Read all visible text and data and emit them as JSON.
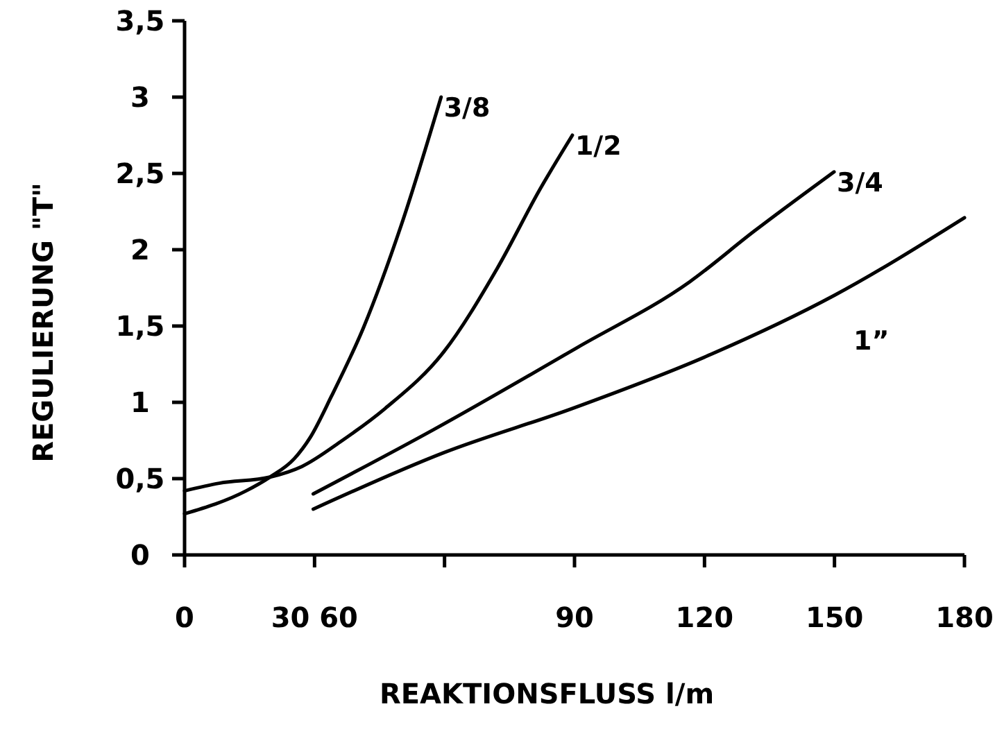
{
  "chart_data": {
    "type": "line",
    "xlabel": "REAKTIONSFLUSS l/m",
    "ylabel": "REGULIERUNG \"T\"",
    "xlim": [
      0,
      180
    ],
    "xticks": [
      0,
      {
        "value": 30,
        "label": "30 60"
      },
      {
        "value": 60,
        "label": null
      },
      90,
      120,
      150,
      180
    ],
    "ylim": [
      0,
      3.5
    ],
    "yticks": [
      0,
      {
        "value": 0.5,
        "label": "0,5"
      },
      1,
      {
        "value": 1.5,
        "label": "1,5"
      },
      2,
      {
        "value": 2.5,
        "label": "2,5"
      },
      3,
      {
        "value": 3.5,
        "label": "3,5"
      }
    ],
    "grid": false,
    "marker": "none",
    "line_style": "solid",
    "series": [
      {
        "name": "3/8",
        "color": "#000000",
        "x": [
          0,
          14.2,
          19.7,
          25.3,
          29,
          33.9,
          41.3,
          50,
          59.2
        ],
        "values": [
          0.27,
          0.42,
          0.51,
          0.63,
          0.77,
          1.04,
          1.49,
          2.16,
          3.0
        ]
      },
      {
        "name": "1/2",
        "color": "#000000",
        "x": [
          0,
          8,
          19.7,
          27.1,
          36.4,
          46.3,
          59.8,
          72.2,
          82.1,
          89.5
        ],
        "values": [
          0.42,
          0.47,
          0.51,
          0.58,
          0.75,
          0.96,
          1.33,
          1.88,
          2.4,
          2.75
        ]
      },
      {
        "name": "3/4",
        "color": "#000000",
        "x": [
          29.7,
          57.4,
          90.7,
          116.6,
          131.4,
          149.9
        ],
        "values": [
          0.4,
          0.82,
          1.36,
          1.79,
          2.12,
          2.51
        ]
      },
      {
        "name": "1”",
        "color": "#000000",
        "x": [
          29.7,
          59.8,
          89.5,
          120.3,
          149.9,
          180
        ],
        "values": [
          0.3,
          0.67,
          0.96,
          1.3,
          1.7,
          2.21
        ]
      }
    ]
  }
}
